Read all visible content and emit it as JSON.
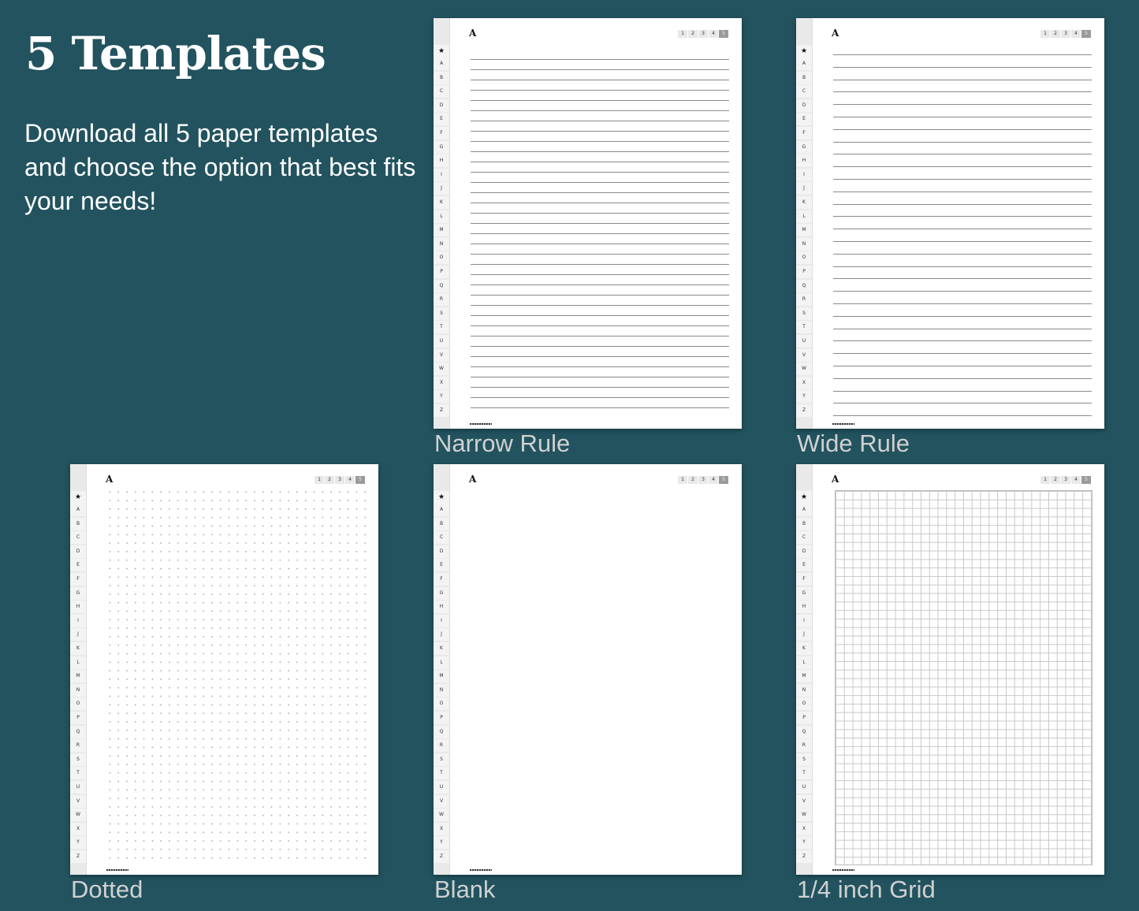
{
  "header": {
    "title": "5 Templates",
    "subtitle": "Download all 5 paper templates and choose the option that best fits your needs!"
  },
  "page_common": {
    "header_letter": "A",
    "sidebar_star": "★",
    "sidebar_letters": [
      "A",
      "B",
      "C",
      "D",
      "E",
      "F",
      "G",
      "H",
      "I",
      "J",
      "K",
      "L",
      "M",
      "N",
      "O",
      "P",
      "Q",
      "R",
      "S",
      "T",
      "U",
      "V",
      "W",
      "X",
      "Y",
      "Z"
    ],
    "page_numbers": [
      "1",
      "2",
      "3",
      "4",
      "5"
    ],
    "active_page": "5"
  },
  "templates": [
    {
      "name": "Narrow Rule",
      "pattern": "narrow-lines"
    },
    {
      "name": "Wide Rule",
      "pattern": "wide-lines"
    },
    {
      "name": "Dotted",
      "pattern": "dots"
    },
    {
      "name": "Blank",
      "pattern": "blank"
    },
    {
      "name": "1/4 inch Grid",
      "pattern": "grid"
    }
  ]
}
